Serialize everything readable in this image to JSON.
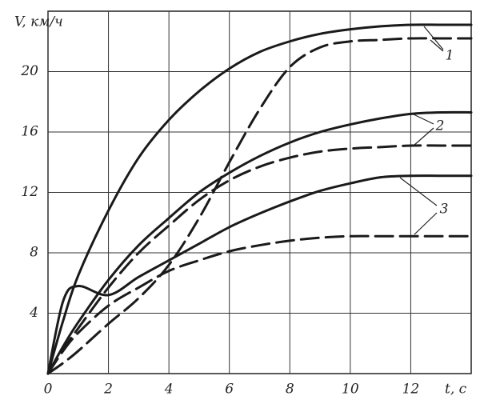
{
  "chart_data": {
    "type": "line",
    "x_label": "t, c",
    "y_label": "V, км/ч",
    "x": [
      0,
      0.5,
      1,
      2,
      3,
      4,
      5,
      6,
      7,
      8,
      9,
      10,
      11,
      12,
      13,
      14
    ],
    "series": [
      {
        "color": "#1a1a1a",
        "style": "solid",
        "values": [
          0,
          3.5,
          6.5,
          10.8,
          14.3,
          16.8,
          18.7,
          20.2,
          21.3,
          22.0,
          22.5,
          22.8,
          23.0,
          23.1,
          23.1,
          23.1
        ]
      },
      {
        "color": "#1a1a1a",
        "style": "dashed",
        "values": [
          0,
          0.7,
          1.5,
          3.3,
          5.0,
          7.2,
          10.3,
          14.0,
          17.5,
          20.3,
          21.6,
          22.0,
          22.1,
          22.2,
          22.2,
          22.2
        ]
      },
      {
        "color": "#1a1a1a",
        "style": "solid",
        "values": [
          0,
          1.8,
          3.4,
          6.2,
          8.5,
          10.3,
          12.0,
          13.3,
          14.4,
          15.3,
          16.0,
          16.5,
          16.9,
          17.2,
          17.3,
          17.3
        ]
      },
      {
        "color": "#1a1a1a",
        "style": "dashed",
        "values": [
          0,
          1.6,
          3.0,
          5.7,
          8.0,
          9.8,
          11.5,
          12.8,
          13.7,
          14.3,
          14.7,
          14.9,
          15.0,
          15.1,
          15.1,
          15.1
        ]
      },
      {
        "color": "#1a1a1a",
        "style": "solid",
        "values": [
          0,
          4.8,
          5.8,
          5.2,
          6.4,
          7.5,
          8.6,
          9.7,
          10.6,
          11.4,
          12.1,
          12.6,
          13.0,
          13.1,
          13.1,
          13.1
        ]
      },
      {
        "color": "#1a1a1a",
        "style": "dashed",
        "values": [
          0,
          1.5,
          2.7,
          4.5,
          5.7,
          6.8,
          7.5,
          8.1,
          8.5,
          8.8,
          9.0,
          9.1,
          9.1,
          9.1,
          9.1,
          9.1
        ]
      }
    ],
    "annotations": [
      "1",
      "2",
      "3"
    ],
    "xlim": [
      0,
      14
    ],
    "ylim": [
      0,
      24
    ],
    "xticks": [
      0,
      2,
      4,
      6,
      8,
      10,
      12
    ],
    "yticks": [
      4,
      8,
      12,
      16,
      20
    ],
    "grid": true
  }
}
